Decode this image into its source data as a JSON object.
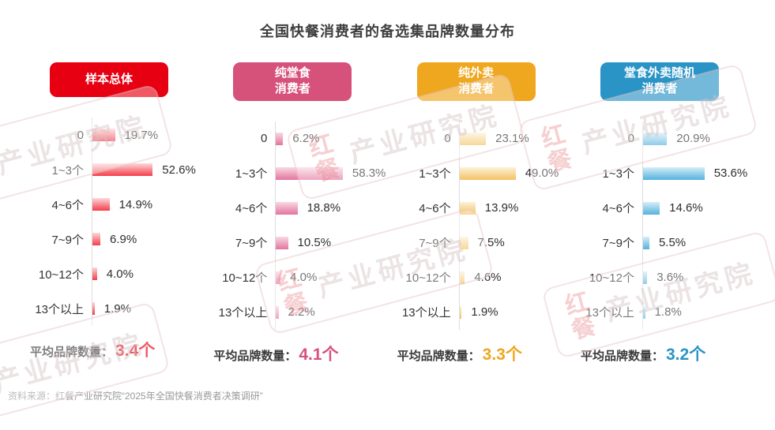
{
  "title": "全国快餐消费者的备选集品牌数量分布",
  "source_note": "资料来源：红餐产业研究院“2025年全国快餐消费者决策调研”",
  "average_label": "平均品牌数量：",
  "watermark": {
    "logo": "红餐",
    "text": "产业研究院"
  },
  "chart_data": {
    "type": "bar",
    "orientation": "horizontal",
    "title": "全国快餐消费者的备选集品牌数量分布",
    "categories": [
      "0",
      "1~3个",
      "4~6个",
      "7~9个",
      "10~12个",
      "13个以上"
    ],
    "unit": "%",
    "xlim": [
      0,
      60
    ],
    "grid": false,
    "value_labels": true,
    "series": [
      {
        "name": "样本总体",
        "values": [
          19.7,
          52.6,
          14.9,
          6.9,
          4.0,
          1.9
        ],
        "average_brand_count": 3.4
      },
      {
        "name": "纯堂食消费者",
        "values": [
          6.2,
          58.3,
          18.8,
          10.5,
          4.0,
          2.2
        ],
        "average_brand_count": 4.1
      },
      {
        "name": "纯外卖消费者",
        "values": [
          23.1,
          49.0,
          13.9,
          7.5,
          4.6,
          1.9
        ],
        "average_brand_count": 3.3
      },
      {
        "name": "堂食外卖随机消费者",
        "values": [
          20.9,
          53.6,
          14.6,
          5.5,
          3.6,
          1.8
        ],
        "average_brand_count": 3.2
      }
    ]
  },
  "groups": [
    {
      "header_lines": [
        "样本总体"
      ],
      "header_color": "#e60012",
      "accent_color": "#e60012",
      "bar_gradient": [
        "#fcd9da",
        "#f53d4b"
      ],
      "values_display": [
        "19.7%",
        "52.6%",
        "14.9%",
        "6.9%",
        "4.0%",
        "1.9%"
      ],
      "average_display": "3.4个"
    },
    {
      "header_lines": [
        "纯堂食",
        "消费者"
      ],
      "header_color": "#d6527b",
      "accent_color": "#d6527b",
      "bar_gradient": [
        "#f9d8e2",
        "#e3749e"
      ],
      "values_display": [
        "6.2%",
        "58.3%",
        "18.8%",
        "10.5%",
        "4.0%",
        "2.2%"
      ],
      "average_display": "4.1个"
    },
    {
      "header_lines": [
        "纯外卖",
        "消费者"
      ],
      "header_color": "#efa71f",
      "accent_color": "#efa71f",
      "bar_gradient": [
        "#fdf1d8",
        "#f3c262"
      ],
      "values_display": [
        "23.1%",
        "49.0%",
        "13.9%",
        "7.5%",
        "4.6%",
        "1.9%"
      ],
      "average_display": "3.3个"
    },
    {
      "header_lines": [
        "堂食外卖随机",
        "消费者"
      ],
      "header_color": "#2a94c6",
      "accent_color": "#2a94c6",
      "bar_gradient": [
        "#d6edf9",
        "#53b2dd"
      ],
      "values_display": [
        "20.9%",
        "53.6%",
        "14.6%",
        "5.5%",
        "3.6%",
        "1.8%"
      ],
      "average_display": "3.2个"
    }
  ]
}
